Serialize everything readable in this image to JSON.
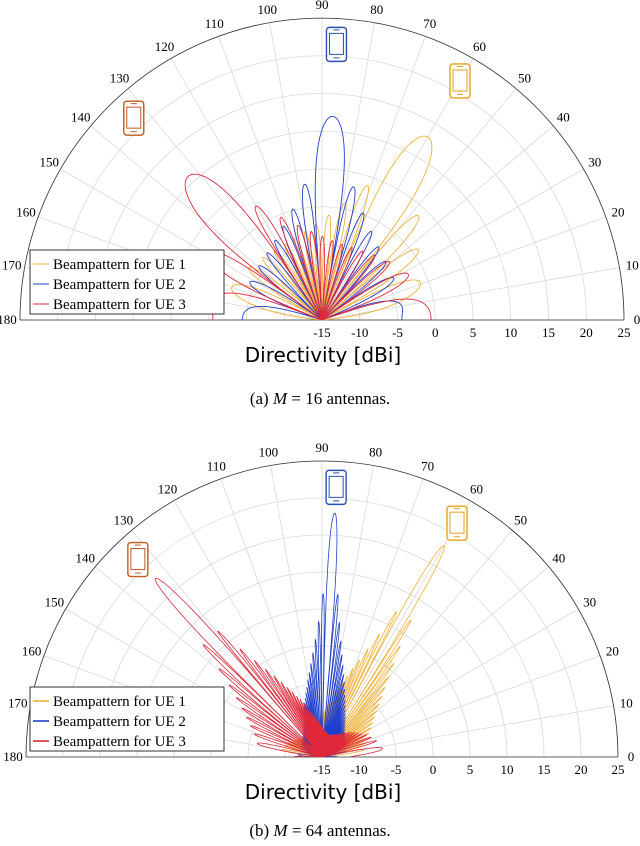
{
  "figure": {
    "subfigures": [
      {
        "id": "a",
        "caption_label": "(a)",
        "caption_math": "M",
        "caption_eq": " = 16",
        "caption_tail": "antennas.",
        "antennas": 16,
        "ue_angles_deg": [
          60,
          87,
          133
        ]
      },
      {
        "id": "b",
        "caption_label": "(b)",
        "caption_math": "M",
        "caption_eq": " = 64",
        "caption_tail": "antennas.",
        "antennas": 64,
        "ue_angles_deg": [
          60,
          87,
          133
        ]
      }
    ],
    "ue_colors": [
      "#f2b237",
      "#1f3fcf",
      "#e0283a"
    ],
    "icon_colors": [
      "#e5a21a",
      "#2a4fb8",
      "#c25a1c"
    ]
  },
  "chart_data": [
    {
      "type": "polar",
      "title": "",
      "rlabel": "Directivity [dBi]",
      "r_ticks": [
        -15,
        -10,
        -5,
        0,
        5,
        10,
        15,
        20,
        25
      ],
      "theta_ticks": [
        0,
        10,
        20,
        30,
        40,
        50,
        60,
        70,
        80,
        90,
        100,
        110,
        120,
        130,
        140,
        150,
        160,
        170,
        180
      ],
      "rlim": [
        -15,
        25
      ],
      "theta_range": [
        0,
        180
      ],
      "legend": [
        "Beampattern for UE 1",
        "Beampattern for UE 2",
        "Beampattern for UE 3"
      ],
      "series": [
        {
          "name": "Beampattern for UE 1",
          "color": "#f2b237",
          "main_lobe_deg": 60,
          "peak_dBi": 13
        },
        {
          "name": "Beampattern for UE 2",
          "color": "#1f3fcf",
          "main_lobe_deg": 87,
          "peak_dBi": 12
        },
        {
          "name": "Beampattern for UE 3",
          "color": "#e0283a",
          "main_lobe_deg": 133,
          "peak_dBi": 11
        }
      ]
    },
    {
      "type": "polar",
      "title": "",
      "rlabel": "Directivity [dBi]",
      "r_ticks": [
        -15,
        -10,
        -5,
        0,
        5,
        10,
        15,
        20,
        25
      ],
      "theta_ticks": [
        0,
        10,
        20,
        30,
        40,
        50,
        60,
        70,
        80,
        90,
        100,
        110,
        120,
        130,
        140,
        150,
        160,
        170,
        180
      ],
      "rlim": [
        -15,
        25
      ],
      "theta_range": [
        0,
        180
      ],
      "legend": [
        "Beampattern for UE 1",
        "Beampattern for UE 2",
        "Beampattern for UE 3"
      ],
      "series": [
        {
          "name": "Beampattern for UE 1",
          "color": "#f2b237",
          "main_lobe_deg": 60,
          "peak_dBi": 18
        },
        {
          "name": "Beampattern for UE 2",
          "color": "#1f3fcf",
          "main_lobe_deg": 87,
          "peak_dBi": 18
        },
        {
          "name": "Beampattern for UE 3",
          "color": "#e0283a",
          "main_lobe_deg": 133,
          "peak_dBi": 18
        }
      ]
    }
  ]
}
